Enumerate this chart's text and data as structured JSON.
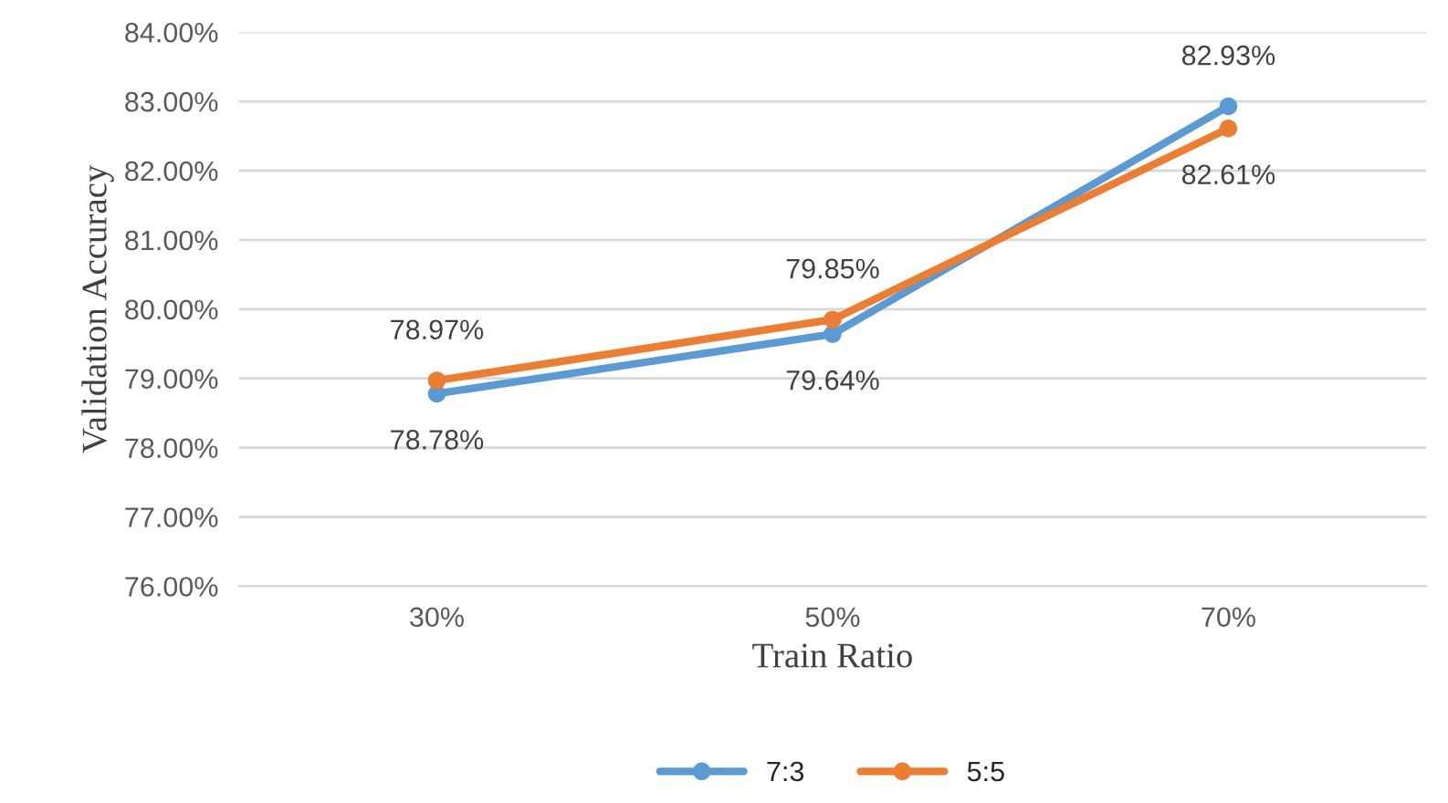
{
  "chart_data": {
    "type": "line",
    "xlabel": "Train Ratio",
    "ylabel": "Validation Accuracy",
    "categories": [
      "30%",
      "50%",
      "70%"
    ],
    "series": [
      {
        "name": "7:3",
        "color": "#5b9bd5",
        "values": [
          78.78,
          79.64,
          82.93
        ],
        "value_labels": [
          "78.78%",
          "79.64%",
          "82.93%"
        ]
      },
      {
        "name": "5:5",
        "color": "#ed7d31",
        "values": [
          78.97,
          79.85,
          82.61
        ],
        "value_labels": [
          "78.97%",
          "79.85%",
          "82.61%"
        ]
      }
    ],
    "ylim": [
      76,
      84
    ],
    "yticks": [
      {
        "value": 76,
        "label": "76.00%"
      },
      {
        "value": 77,
        "label": "77.00%"
      },
      {
        "value": 78,
        "label": "78.00%"
      },
      {
        "value": 79,
        "label": "79.00%"
      },
      {
        "value": 80,
        "label": "80.00%"
      },
      {
        "value": 81,
        "label": "81.00%"
      },
      {
        "value": 82,
        "label": "82.00%"
      },
      {
        "value": 83,
        "label": "83.00%"
      },
      {
        "value": 84,
        "label": "84.00%"
      }
    ],
    "grid": "y",
    "legend": "bottom",
    "marker": "circle",
    "line_style": "solid"
  }
}
